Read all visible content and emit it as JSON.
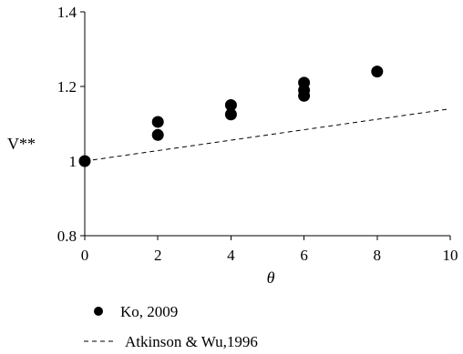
{
  "chart_data": {
    "type": "scatter",
    "xlabel": "θ",
    "ylabel": "V**",
    "xlim": [
      0,
      10
    ],
    "ylim": [
      0.8,
      1.4
    ],
    "x_ticks": [
      0,
      2,
      4,
      6,
      8,
      10
    ],
    "y_ticks": [
      0.8,
      1,
      1.2,
      1.4
    ],
    "x_tick_labels": [
      "0",
      "2",
      "4",
      "6",
      "8",
      "10"
    ],
    "y_tick_labels": [
      "0.8",
      "1",
      "1.2",
      "1.4"
    ],
    "grid": false,
    "legend_position": "bottom-left",
    "series": [
      {
        "name": "Ko, 2009",
        "kind": "scatter",
        "marker": "filled-circle",
        "color": "#000000",
        "points": [
          {
            "x": 0,
            "y": 1.0
          },
          {
            "x": 2,
            "y": 1.07
          },
          {
            "x": 2,
            "y": 1.105
          },
          {
            "x": 4,
            "y": 1.125
          },
          {
            "x": 4,
            "y": 1.15
          },
          {
            "x": 6,
            "y": 1.175
          },
          {
            "x": 6,
            "y": 1.19
          },
          {
            "x": 6,
            "y": 1.21
          },
          {
            "x": 8,
            "y": 1.24
          }
        ]
      },
      {
        "name": "Atkinson & Wu,1996",
        "kind": "line",
        "style": "dashed",
        "color": "#000000",
        "points": [
          {
            "x": 0,
            "y": 1.0
          },
          {
            "x": 10,
            "y": 1.14
          }
        ]
      }
    ]
  }
}
